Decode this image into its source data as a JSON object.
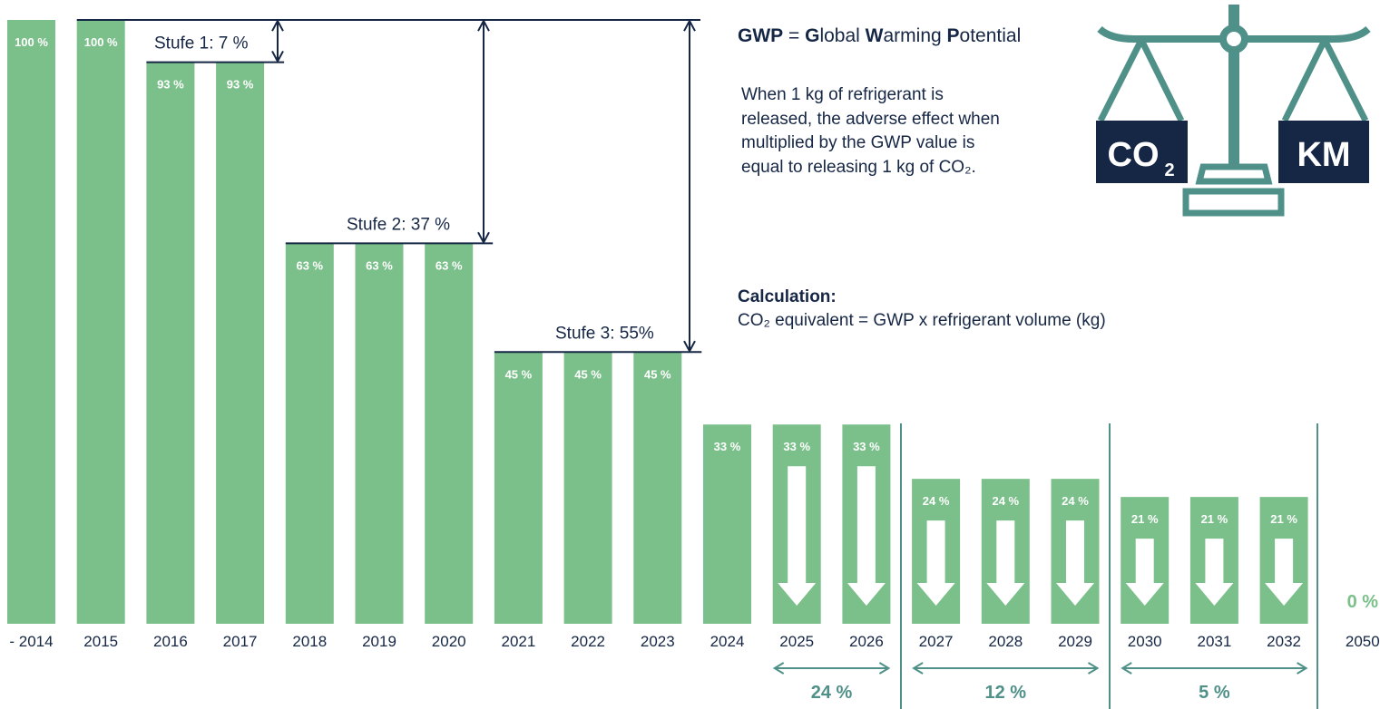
{
  "chart_data": {
    "type": "bar",
    "categories": [
      "- 2014",
      "2015",
      "2016",
      "2017",
      "2018",
      "2019",
      "2020",
      "2021",
      "2022",
      "2023",
      "2024",
      "2025",
      "2026",
      "2027",
      "2028",
      "2029",
      "2030",
      "2031",
      "2032",
      "2050"
    ],
    "values": [
      100,
      100,
      93,
      93,
      63,
      63,
      63,
      45,
      45,
      45,
      33,
      33,
      33,
      24,
      24,
      24,
      21,
      21,
      21,
      0
    ],
    "value_labels": [
      "100 %",
      "100 %",
      "93 %",
      "93 %",
      "63 %",
      "63 %",
      "63 %",
      "45 %",
      "45 %",
      "45 %",
      "33 %",
      "33 %",
      "33 %",
      "24 %",
      "24 %",
      "24 %",
      "21 %",
      "21 %",
      "21 %",
      "0 %"
    ],
    "down_arrow_categories": [
      "2025",
      "2026",
      "2027",
      "2028",
      "2029",
      "2030",
      "2031",
      "2032"
    ],
    "ylim": [
      0,
      100
    ],
    "steps": [
      {
        "label": "Stufe 1: 7 %",
        "from": 100,
        "to": 93
      },
      {
        "label": "Stufe 2: 37 %",
        "from": 100,
        "to": 63
      },
      {
        "label": "Stufe 3: 55%",
        "from": 100,
        "to": 45
      }
    ],
    "ranges": [
      {
        "label": "24 %",
        "from": "2025",
        "to": "2026"
      },
      {
        "label": "12 %",
        "from": "2027",
        "to": "2029"
      },
      {
        "label": "5 %",
        "from": "2030",
        "to": "2032"
      }
    ]
  },
  "info": {
    "gwp_abbr": "GWP",
    "gwp_eq": " = ",
    "gwp_parts": [
      {
        "bold": "G",
        "rest": "lobal "
      },
      {
        "bold": "W",
        "rest": "arming "
      },
      {
        "bold": "P",
        "rest": "otential"
      }
    ],
    "explanation": "When 1 kg of refrigerant is released, the adverse effect when multiplied by the GWP value is equal to releasing 1 kg of CO₂.",
    "calculation_heading": "Calculation:",
    "calculation_formula": "CO₂ equivalent = GWP x refrigerant volume (kg)"
  },
  "scale_icon": {
    "left_label": "CO",
    "left_subscript": "2",
    "right_label": "KM"
  },
  "colors": {
    "bar": "#7bc08a",
    "navy": "#162645",
    "teal": "#4f9188",
    "text_on_bar": "#ffffff"
  }
}
